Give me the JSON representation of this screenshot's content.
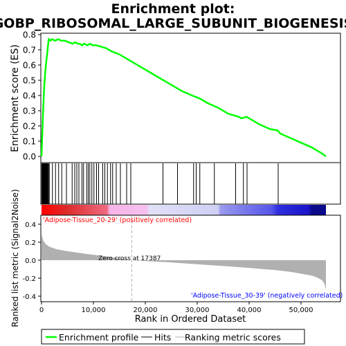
{
  "chart_data": {
    "type": "line",
    "title": "Enrichment plot:",
    "subtitle": "GOBP_RIBOSOMAL_LARGE_SUBUNIT_BIOGENESIS",
    "colors": {
      "enrichment_line": "#00ff00",
      "hits": "#000000",
      "metric_fill": "#b0b0b0",
      "zero_cross_line": "#b0b0b0",
      "pos_label": "#ff0000",
      "neg_label": "#0000ff"
    },
    "top_panel": {
      "ylabel": "Enrichment score (ES)",
      "ylim": [
        0,
        0.8
      ],
      "yticks": [
        "0.0",
        "0.1",
        "0.2",
        "0.3",
        "0.4",
        "0.5",
        "0.6",
        "0.7",
        "0.8"
      ],
      "grid": false,
      "es_profile": {
        "x": [
          0,
          150,
          300,
          500,
          700,
          900,
          1100,
          1250,
          1400,
          1700,
          2000,
          2600,
          3200,
          3800,
          4500,
          5200,
          6000,
          6500,
          7000,
          7400,
          7800,
          8200,
          8800,
          9400,
          9800,
          10500,
          11500,
          12500,
          13500,
          15000,
          17000,
          19000,
          21000,
          23000,
          25000,
          27000,
          29000,
          30500,
          32000,
          34000,
          36000,
          38000,
          38500,
          39500,
          40500,
          42000,
          44000,
          45500,
          46000,
          48000,
          50000,
          52000,
          54000,
          54800
        ],
        "y": [
          0.0,
          0.15,
          0.3,
          0.45,
          0.55,
          0.62,
          0.68,
          0.73,
          0.77,
          0.76,
          0.77,
          0.76,
          0.77,
          0.76,
          0.76,
          0.75,
          0.74,
          0.75,
          0.74,
          0.74,
          0.73,
          0.74,
          0.73,
          0.74,
          0.73,
          0.73,
          0.72,
          0.71,
          0.69,
          0.67,
          0.63,
          0.59,
          0.55,
          0.51,
          0.47,
          0.43,
          0.4,
          0.38,
          0.35,
          0.32,
          0.28,
          0.26,
          0.25,
          0.26,
          0.24,
          0.21,
          0.18,
          0.17,
          0.15,
          0.12,
          0.09,
          0.06,
          0.02,
          0.0
        ]
      }
    },
    "hits": [
      50,
      120,
      180,
      250,
      320,
      380,
      450,
      520,
      600,
      680,
      750,
      830,
      900,
      980,
      1050,
      1150,
      1250,
      1350,
      1500,
      2100,
      2700,
      3300,
      3900,
      4800,
      5900,
      6400,
      6800,
      7200,
      7800,
      8100,
      8700,
      9000,
      9300,
      9700,
      10100,
      10600,
      11000,
      11800,
      12200,
      12700,
      13300,
      13700,
      14400,
      15200,
      16400,
      17200,
      23400,
      26200,
      29300,
      29800,
      30500,
      33300,
      37400,
      38900,
      39600,
      45600
    ],
    "color_bar": {
      "left_label": "'Adipose-Tissue_20-29' (positively correlated)",
      "right_label": "'Adipose-Tissue_30-39' (negatively correlated)"
    },
    "bottom_panel": {
      "ylabel": "Ranked list metric (Signal2Noise)",
      "ylim": [
        -0.45,
        0.45
      ],
      "yticks": [
        "0.4",
        "0.2",
        "0.0",
        "-0.2",
        "-0.4"
      ],
      "zero_cross_label": "Zero cross at 17387",
      "zero_cross": 17387,
      "metric": {
        "x": [
          0,
          300,
          800,
          1500,
          3000,
          5000,
          8000,
          12000,
          15000,
          17387,
          20000,
          25000,
          30000,
          35000,
          40000,
          45000,
          48000,
          50000,
          52000,
          53000,
          54000,
          54500,
          54800
        ],
        "y": [
          0.29,
          0.22,
          0.18,
          0.15,
          0.12,
          0.1,
          0.075,
          0.045,
          0.02,
          0.0,
          -0.01,
          -0.025,
          -0.045,
          -0.065,
          -0.085,
          -0.11,
          -0.13,
          -0.15,
          -0.17,
          -0.19,
          -0.22,
          -0.26,
          -0.33
        ]
      }
    },
    "xlabel": "Rank in Ordered Dataset",
    "xlim": [
      0,
      55000
    ],
    "xticks": [
      "0",
      "10,000",
      "20,000",
      "30,000",
      "40,000",
      "50,000"
    ],
    "legend": {
      "position": "bottom",
      "entries": [
        "Enrichment profile",
        "Hits",
        "Ranking metric scores"
      ]
    }
  }
}
